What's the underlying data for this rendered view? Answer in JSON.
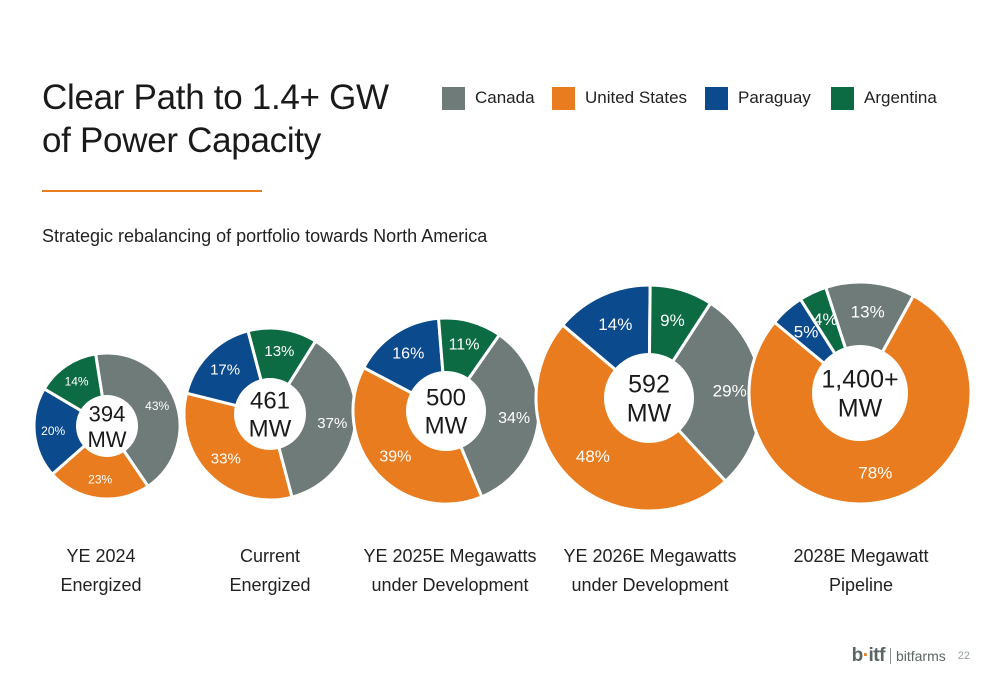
{
  "title_line1": "Clear Path to 1.4+ GW",
  "title_line2": "of Power Capacity",
  "subtitle": "Strategic rebalancing of portfolio towards North America",
  "legend": [
    {
      "label": "Canada",
      "color": "#6f7b78"
    },
    {
      "label": "United States",
      "color": "#e87c1e"
    },
    {
      "label": "Paraguay",
      "color": "#0b4a8c"
    },
    {
      "label": "Argentina",
      "color": "#0d6b43"
    }
  ],
  "chart_data": {
    "type": "pie",
    "series_order": [
      "Canada",
      "United States",
      "Paraguay",
      "Argentina"
    ],
    "charts": [
      {
        "center_value": "394",
        "center_unit": "MW",
        "label_line1": "YE 2024",
        "label_line2": "Energized",
        "values": [
          43,
          23,
          20,
          14
        ],
        "value_labels": [
          "43%",
          "23%",
          "20%",
          "14%"
        ]
      },
      {
        "center_value": "461",
        "center_unit": "MW",
        "label_line1": "Current",
        "label_line2": "Energized",
        "values": [
          37,
          33,
          17,
          13
        ],
        "value_labels": [
          "37%",
          "33%",
          "17%",
          "13%"
        ]
      },
      {
        "center_value": "500",
        "center_unit": "MW",
        "label_line1": "YE 2025E Megawatts",
        "label_line2": "under Development",
        "values": [
          34,
          39,
          16,
          11
        ],
        "value_labels": [
          "34%",
          "39%",
          "16%",
          "11%"
        ]
      },
      {
        "center_value": "592",
        "center_unit": "MW",
        "label_line1": "YE 2026E Megawatts",
        "label_line2": "under Development",
        "values": [
          29,
          48,
          14,
          9
        ],
        "value_labels": [
          "29%",
          "48%",
          "14%",
          "9%"
        ]
      },
      {
        "center_value": "1,400+",
        "center_unit": "MW",
        "label_line1": "2028E Megawatt",
        "label_line2": "Pipeline",
        "values": [
          13,
          78,
          5,
          4
        ],
        "value_labels": [
          "13%",
          "78%",
          "5%",
          "4%"
        ]
      }
    ]
  },
  "footer": {
    "logo_prefix": "b",
    "logo_dot": "·",
    "logo_suffix": "itf",
    "logo_word": "bitfarms",
    "page_number": "22"
  }
}
